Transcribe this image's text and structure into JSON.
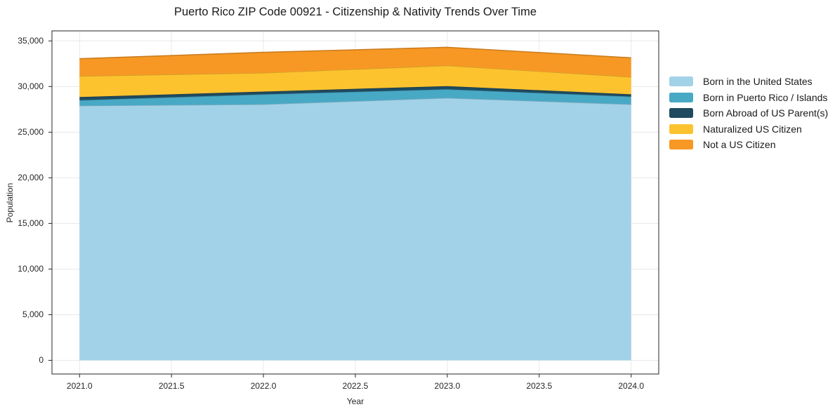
{
  "chart_data": {
    "type": "area",
    "stacked": true,
    "title": "Puerto Rico ZIP Code 00921 - Citizenship & Nativity Trends Over Time",
    "xlabel": "Year",
    "ylabel": "Population",
    "x": [
      2021,
      2022,
      2023,
      2024
    ],
    "series": [
      {
        "name": "Born in the United States",
        "color": "#A2D2E8",
        "values": [
          27900,
          28050,
          28750,
          28050
        ]
      },
      {
        "name": "Born in Puerto Rico / Islands",
        "color": "#48A9C5",
        "values": [
          600,
          1100,
          950,
          850
        ]
      },
      {
        "name": "Born Abroad of US Parent(s)",
        "color": "#1F4A5F",
        "values": [
          350,
          300,
          350,
          250
        ]
      },
      {
        "name": "Naturalized US Citizen",
        "color": "#FDC32F",
        "values": [
          2300,
          2050,
          2250,
          1900
        ]
      },
      {
        "name": "Not a US Citizen",
        "color": "#F89824",
        "values": [
          1900,
          2250,
          2000,
          2100
        ]
      }
    ],
    "totals": [
      33050,
      33750,
      34300,
      33150
    ],
    "xticks": [
      "2021.0",
      "2021.5",
      "2022.0",
      "2022.5",
      "2023.0",
      "2023.5",
      "2024.0"
    ],
    "xtick_values": [
      2021,
      2021.5,
      2022,
      2022.5,
      2023,
      2023.5,
      2024
    ],
    "yticks": [
      "0",
      "5,000",
      "10,000",
      "15,000",
      "20,000",
      "25,000",
      "30,000",
      "35,000"
    ],
    "ytick_values": [
      0,
      5000,
      10000,
      15000,
      20000,
      25000,
      30000,
      35000
    ],
    "xlim": [
      2020.85,
      2024.15
    ],
    "ylim": [
      -1500,
      36100
    ],
    "grid": true,
    "grid_color": "#e8e8e8",
    "spine_color": "#262626",
    "legend_position": "right-outside"
  }
}
